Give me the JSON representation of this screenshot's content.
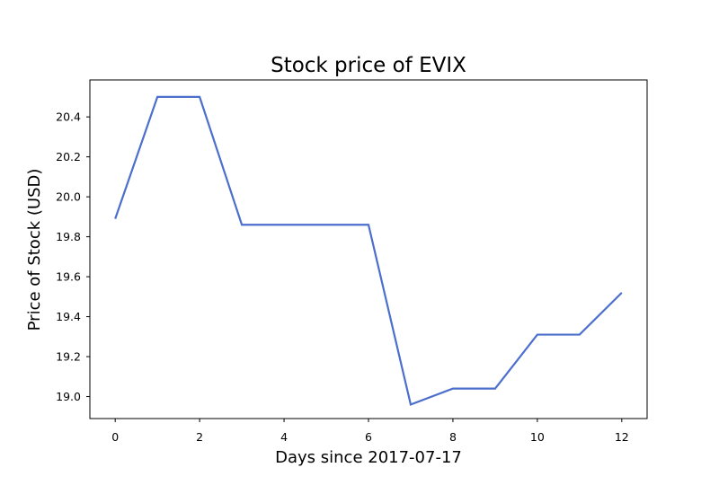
{
  "chart_data": {
    "type": "line",
    "title": "Stock price of EVIX",
    "xlabel": "Days since 2017-07-17",
    "ylabel": "Price of Stock (USD)",
    "x": [
      0,
      1,
      2,
      3,
      4,
      5,
      6,
      7,
      8,
      9,
      10,
      11,
      12
    ],
    "series": [
      {
        "values": [
          19.89,
          20.5,
          20.5,
          19.86,
          19.86,
          19.86,
          19.86,
          18.96,
          19.04,
          19.04,
          19.31,
          19.31,
          19.52
        ],
        "color": "#4c6fcd"
      }
    ],
    "xlim": [
      -0.6,
      12.6
    ],
    "ylim": [
      18.89,
      20.585
    ],
    "xticks": [
      0,
      2,
      4,
      6,
      8,
      10,
      12
    ],
    "xtick_labels": [
      "0",
      "2",
      "4",
      "6",
      "8",
      "10",
      "12"
    ],
    "yticks": [
      19.0,
      19.2,
      19.4,
      19.6,
      19.8,
      20.0,
      20.2,
      20.4
    ],
    "ytick_labels": [
      "19.0",
      "19.2",
      "19.4",
      "19.6",
      "19.8",
      "20.0",
      "20.2",
      "20.4"
    ],
    "grid": false,
    "legend": "none"
  }
}
